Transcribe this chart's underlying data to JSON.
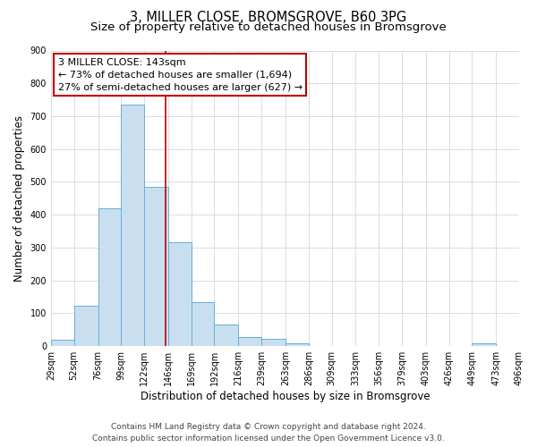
{
  "title_line1": "3, MILLER CLOSE, BROMSGROVE, B60 3PG",
  "title_line2": "Size of property relative to detached houses in Bromsgrove",
  "xlabel": "Distribution of detached houses by size in Bromsgrove",
  "ylabel": "Number of detached properties",
  "bar_edges": [
    29,
    52,
    76,
    99,
    122,
    146,
    169,
    192,
    216,
    239,
    263,
    286,
    309,
    333,
    356,
    379,
    403,
    426,
    449,
    473,
    496
  ],
  "bar_heights": [
    20,
    122,
    420,
    735,
    485,
    315,
    133,
    65,
    28,
    22,
    10,
    0,
    0,
    0,
    0,
    0,
    0,
    0,
    8,
    0
  ],
  "bar_color": "#c9dff0",
  "bar_edge_color": "#6aaed6",
  "property_line_x": 143,
  "property_line_color": "#c00000",
  "annotation_text_line1": "3 MILLER CLOSE: 143sqm",
  "annotation_text_line2": "← 73% of detached houses are smaller (1,694)",
  "annotation_text_line3": "27% of semi-detached houses are larger (627) →",
  "annotation_box_color": "#ffffff",
  "annotation_box_edge_color": "#c00000",
  "ylim": [
    0,
    900
  ],
  "yticks": [
    0,
    100,
    200,
    300,
    400,
    500,
    600,
    700,
    800,
    900
  ],
  "xtick_labels": [
    "29sqm",
    "52sqm",
    "76sqm",
    "99sqm",
    "122sqm",
    "146sqm",
    "169sqm",
    "192sqm",
    "216sqm",
    "239sqm",
    "263sqm",
    "286sqm",
    "309sqm",
    "333sqm",
    "356sqm",
    "379sqm",
    "403sqm",
    "426sqm",
    "449sqm",
    "473sqm",
    "496sqm"
  ],
  "footer_line1": "Contains HM Land Registry data © Crown copyright and database right 2024.",
  "footer_line2": "Contains public sector information licensed under the Open Government Licence v3.0.",
  "background_color": "#ffffff",
  "grid_color": "#d0d8e0",
  "title_fontsize": 10.5,
  "subtitle_fontsize": 9.5,
  "axis_label_fontsize": 8.5,
  "tick_fontsize": 7,
  "annotation_fontsize": 8,
  "footer_fontsize": 6.5
}
